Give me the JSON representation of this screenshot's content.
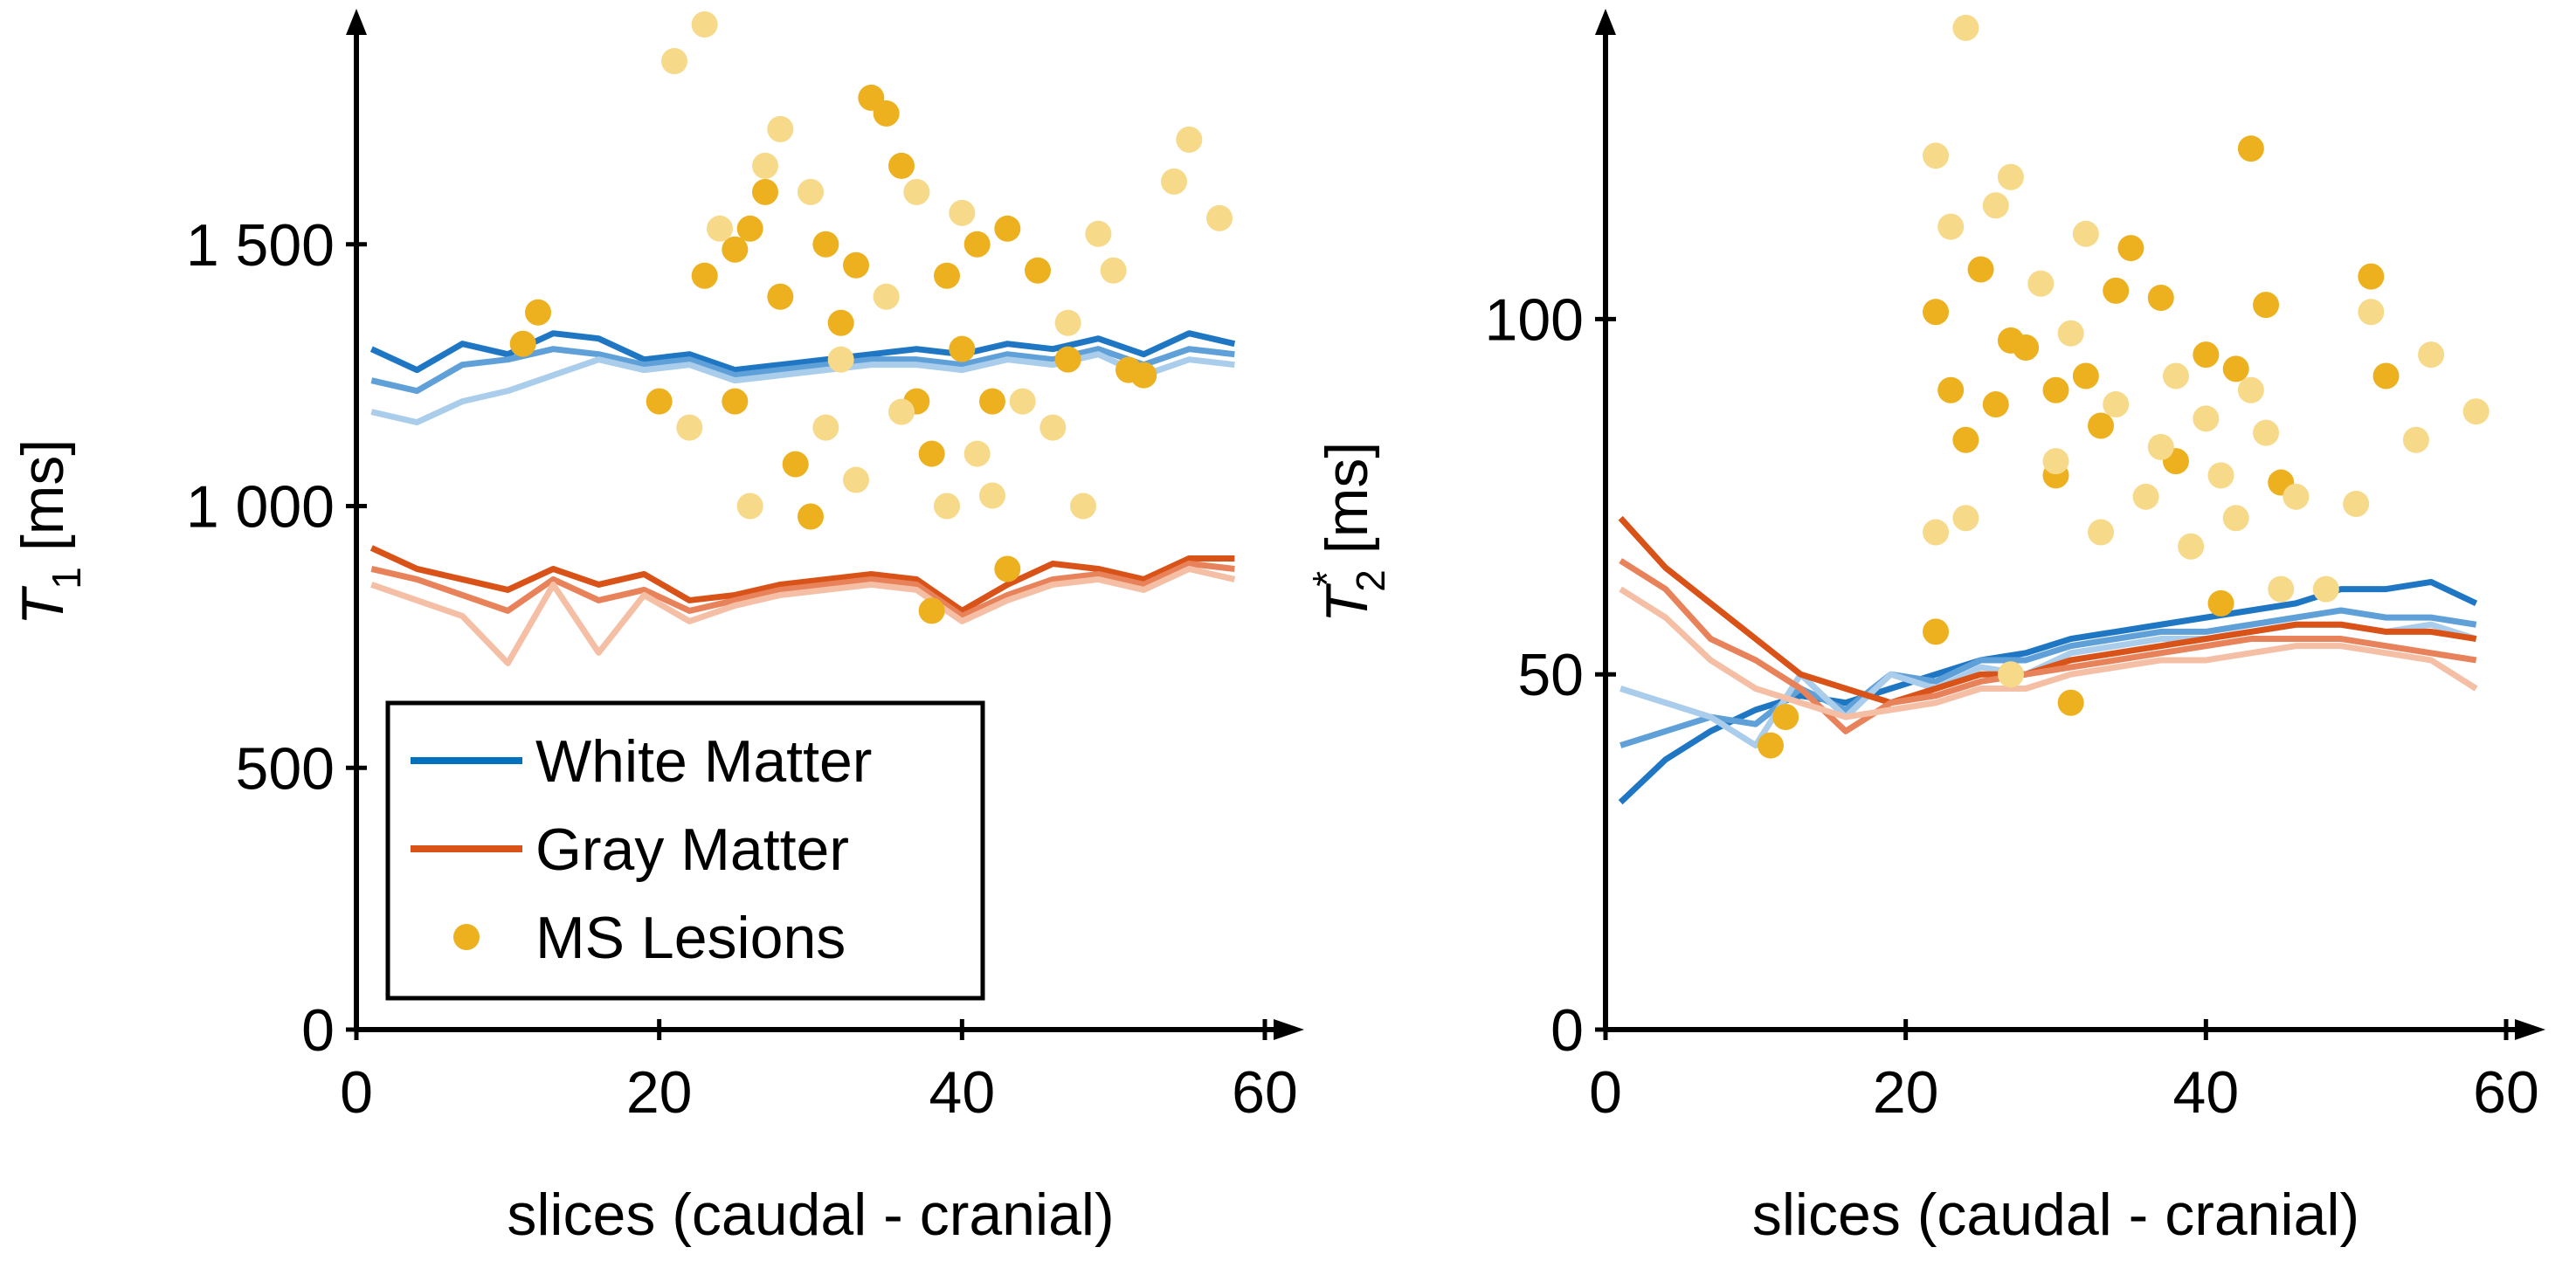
{
  "chart_data": [
    {
      "type": "line",
      "legend": "lower left",
      "ylabel": {
        "symbol": "T",
        "subscript": "1",
        "unit": "[ms]"
      },
      "xlabel": "slices (caudal - cranial)",
      "xlim": [
        0,
        60
      ],
      "xticks": [
        0,
        20,
        40,
        60
      ],
      "ylim": [
        0,
        1900
      ],
      "yticks": [
        0,
        500,
        {
          "value": 1000,
          "label": "1 000"
        },
        {
          "value": 1500,
          "label": "1 500"
        }
      ],
      "x": [
        1,
        4,
        7,
        10,
        13,
        16,
        19,
        22,
        25,
        28,
        31,
        34,
        37,
        40,
        43,
        46,
        49,
        52,
        55,
        58
      ],
      "series": [
        {
          "name": "White Matter",
          "color": "#0072bd",
          "lines": [
            {
              "color": "#1f77c4",
              "values": [
                1300,
                1260,
                1310,
                1290,
                1330,
                1320,
                1280,
                1290,
                1260,
                1270,
                1280,
                1290,
                1300,
                1290,
                1310,
                1300,
                1320,
                1290,
                1330,
                1310
              ]
            },
            {
              "color": "#5fa0d8",
              "values": [
                1240,
                1220,
                1270,
                1280,
                1300,
                1290,
                1270,
                1280,
                1250,
                1260,
                1270,
                1280,
                1280,
                1270,
                1290,
                1280,
                1300,
                1270,
                1300,
                1290
              ]
            },
            {
              "color": "#a9cdea",
              "values": [
                1180,
                1160,
                1200,
                1220,
                1250,
                1280,
                1260,
                1270,
                1240,
                1250,
                1260,
                1270,
                1270,
                1260,
                1280,
                1270,
                1290,
                1250,
                1280,
                1270
              ]
            }
          ]
        },
        {
          "name": "Gray Matter",
          "color": "#d95319",
          "lines": [
            {
              "color": "#d95319",
              "values": [
                920,
                880,
                860,
                840,
                880,
                850,
                870,
                820,
                830,
                850,
                860,
                870,
                860,
                800,
                850,
                890,
                880,
                860,
                900,
                900
              ]
            },
            {
              "color": "#e8825a",
              "values": [
                880,
                860,
                830,
                800,
                860,
                820,
                840,
                800,
                820,
                840,
                850,
                860,
                850,
                790,
                830,
                860,
                870,
                850,
                890,
                880
              ]
            },
            {
              "color": "#f5bfa6",
              "values": [
                850,
                820,
                790,
                700,
                850,
                720,
                830,
                780,
                810,
                830,
                840,
                850,
                840,
                780,
                820,
                850,
                860,
                840,
                880,
                860
              ]
            }
          ]
        },
        {
          "name": "MS Lesions",
          "color": "#edb120",
          "points": [
            {
              "color": "#edb120",
              "x": [
                11,
                12,
                23,
                25,
                26,
                27,
                28,
                29,
                30,
                31,
                32,
                33,
                34,
                35,
                36,
                37,
                38,
                38,
                39,
                40,
                41,
                42,
                43,
                43,
                45,
                47,
                51,
                52,
                20,
                25
              ],
              "y": [
                1310,
                1370,
                1440,
                1490,
                1530,
                1600,
                1400,
                1080,
                980,
                1500,
                1350,
                1460,
                1780,
                1750,
                1650,
                1200,
                800,
                1100,
                1440,
                1300,
                1500,
                1200,
                880,
                1530,
                1450,
                1280,
                1260,
                1250,
                1200,
                1200
              ]
            },
            {
              "color": "#f7d98a",
              "x": [
                21,
                23,
                24,
                27,
                28,
                30,
                31,
                32,
                33,
                35,
                36,
                37,
                39,
                40,
                41,
                42,
                44,
                46,
                47,
                48,
                49,
                50,
                54,
                55,
                57,
                22,
                26
              ],
              "y": [
                1850,
                1920,
                1530,
                1650,
                1720,
                1600,
                1150,
                1280,
                1050,
                1400,
                1180,
                1600,
                1000,
                1560,
                1100,
                1020,
                1200,
                1150,
                1350,
                1000,
                1520,
                1450,
                1620,
                1700,
                1550,
                1150,
                1000
              ]
            }
          ]
        }
      ]
    },
    {
      "type": "line",
      "ylabel": {
        "symbol": "T",
        "subscript": "2",
        "superscript": "*",
        "unit": "[ms]"
      },
      "xlabel": "slices (caudal - cranial)",
      "xlim": [
        0,
        60
      ],
      "xticks": [
        0,
        20,
        40,
        60
      ],
      "ylim": [
        0,
        140
      ],
      "yticks": [
        0,
        50,
        100
      ],
      "x": [
        1,
        4,
        7,
        10,
        13,
        16,
        19,
        22,
        25,
        28,
        31,
        34,
        37,
        40,
        43,
        46,
        49,
        52,
        55,
        58
      ],
      "series": [
        {
          "color": "#0072bd",
          "lines": [
            {
              "color": "#1f77c4",
              "values": [
                32,
                38,
                42,
                45,
                47,
                46,
                48,
                50,
                52,
                53,
                55,
                56,
                57,
                58,
                59,
                60,
                62,
                62,
                63,
                60
              ]
            },
            {
              "color": "#5fa0d8",
              "values": [
                40,
                42,
                44,
                43,
                48,
                45,
                50,
                49,
                52,
                52,
                54,
                55,
                56,
                56,
                57,
                58,
                59,
                58,
                58,
                57
              ]
            },
            {
              "color": "#a9cdea",
              "values": [
                48,
                46,
                44,
                40,
                50,
                44,
                50,
                48,
                51,
                50,
                53,
                54,
                55,
                55,
                56,
                57,
                57,
                56,
                57,
                55
              ]
            }
          ]
        },
        {
          "color": "#d95319",
          "lines": [
            {
              "color": "#d95319",
              "values": [
                72,
                65,
                60,
                55,
                50,
                48,
                46,
                48,
                50,
                50,
                52,
                53,
                54,
                55,
                56,
                57,
                57,
                56,
                56,
                55
              ]
            },
            {
              "color": "#e8825a",
              "values": [
                66,
                62,
                55,
                52,
                48,
                42,
                46,
                47,
                49,
                50,
                51,
                52,
                53,
                54,
                55,
                55,
                55,
                54,
                53,
                52
              ]
            },
            {
              "color": "#f5bfa6",
              "values": [
                62,
                58,
                52,
                48,
                46,
                44,
                45,
                46,
                48,
                48,
                50,
                51,
                52,
                52,
                53,
                54,
                54,
                53,
                52,
                48
              ]
            }
          ]
        },
        {
          "color": "#edb120",
          "points": [
            {
              "color": "#edb120",
              "x": [
                11,
                12,
                22,
                22,
                23,
                24,
                25,
                26,
                27,
                28,
                30,
                30,
                31,
                32,
                33,
                34,
                35,
                37,
                38,
                40,
                41,
                42,
                43,
                44,
                45,
                51,
                52
              ],
              "y": [
                40,
                44,
                56,
                101,
                90,
                83,
                107,
                88,
                97,
                96,
                78,
                90,
                46,
                92,
                85,
                104,
                110,
                103,
                80,
                95,
                60,
                93,
                124,
                102,
                77,
                106,
                92
              ]
            },
            {
              "color": "#f7d98a",
              "x": [
                22,
                23,
                24,
                24,
                26,
                27,
                29,
                30,
                31,
                32,
                33,
                34,
                36,
                37,
                38,
                39,
                40,
                41,
                42,
                43,
                44,
                45,
                46,
                48,
                50,
                51,
                54,
                55,
                58,
                22,
                27
              ],
              "y": [
                123,
                113,
                141,
                72,
                116,
                120,
                105,
                80,
                98,
                112,
                70,
                88,
                75,
                82,
                92,
                68,
                86,
                78,
                72,
                90,
                84,
                62,
                75,
                62,
                74,
                101,
                83,
                95,
                87,
                70,
                50
              ]
            }
          ]
        }
      ]
    }
  ]
}
